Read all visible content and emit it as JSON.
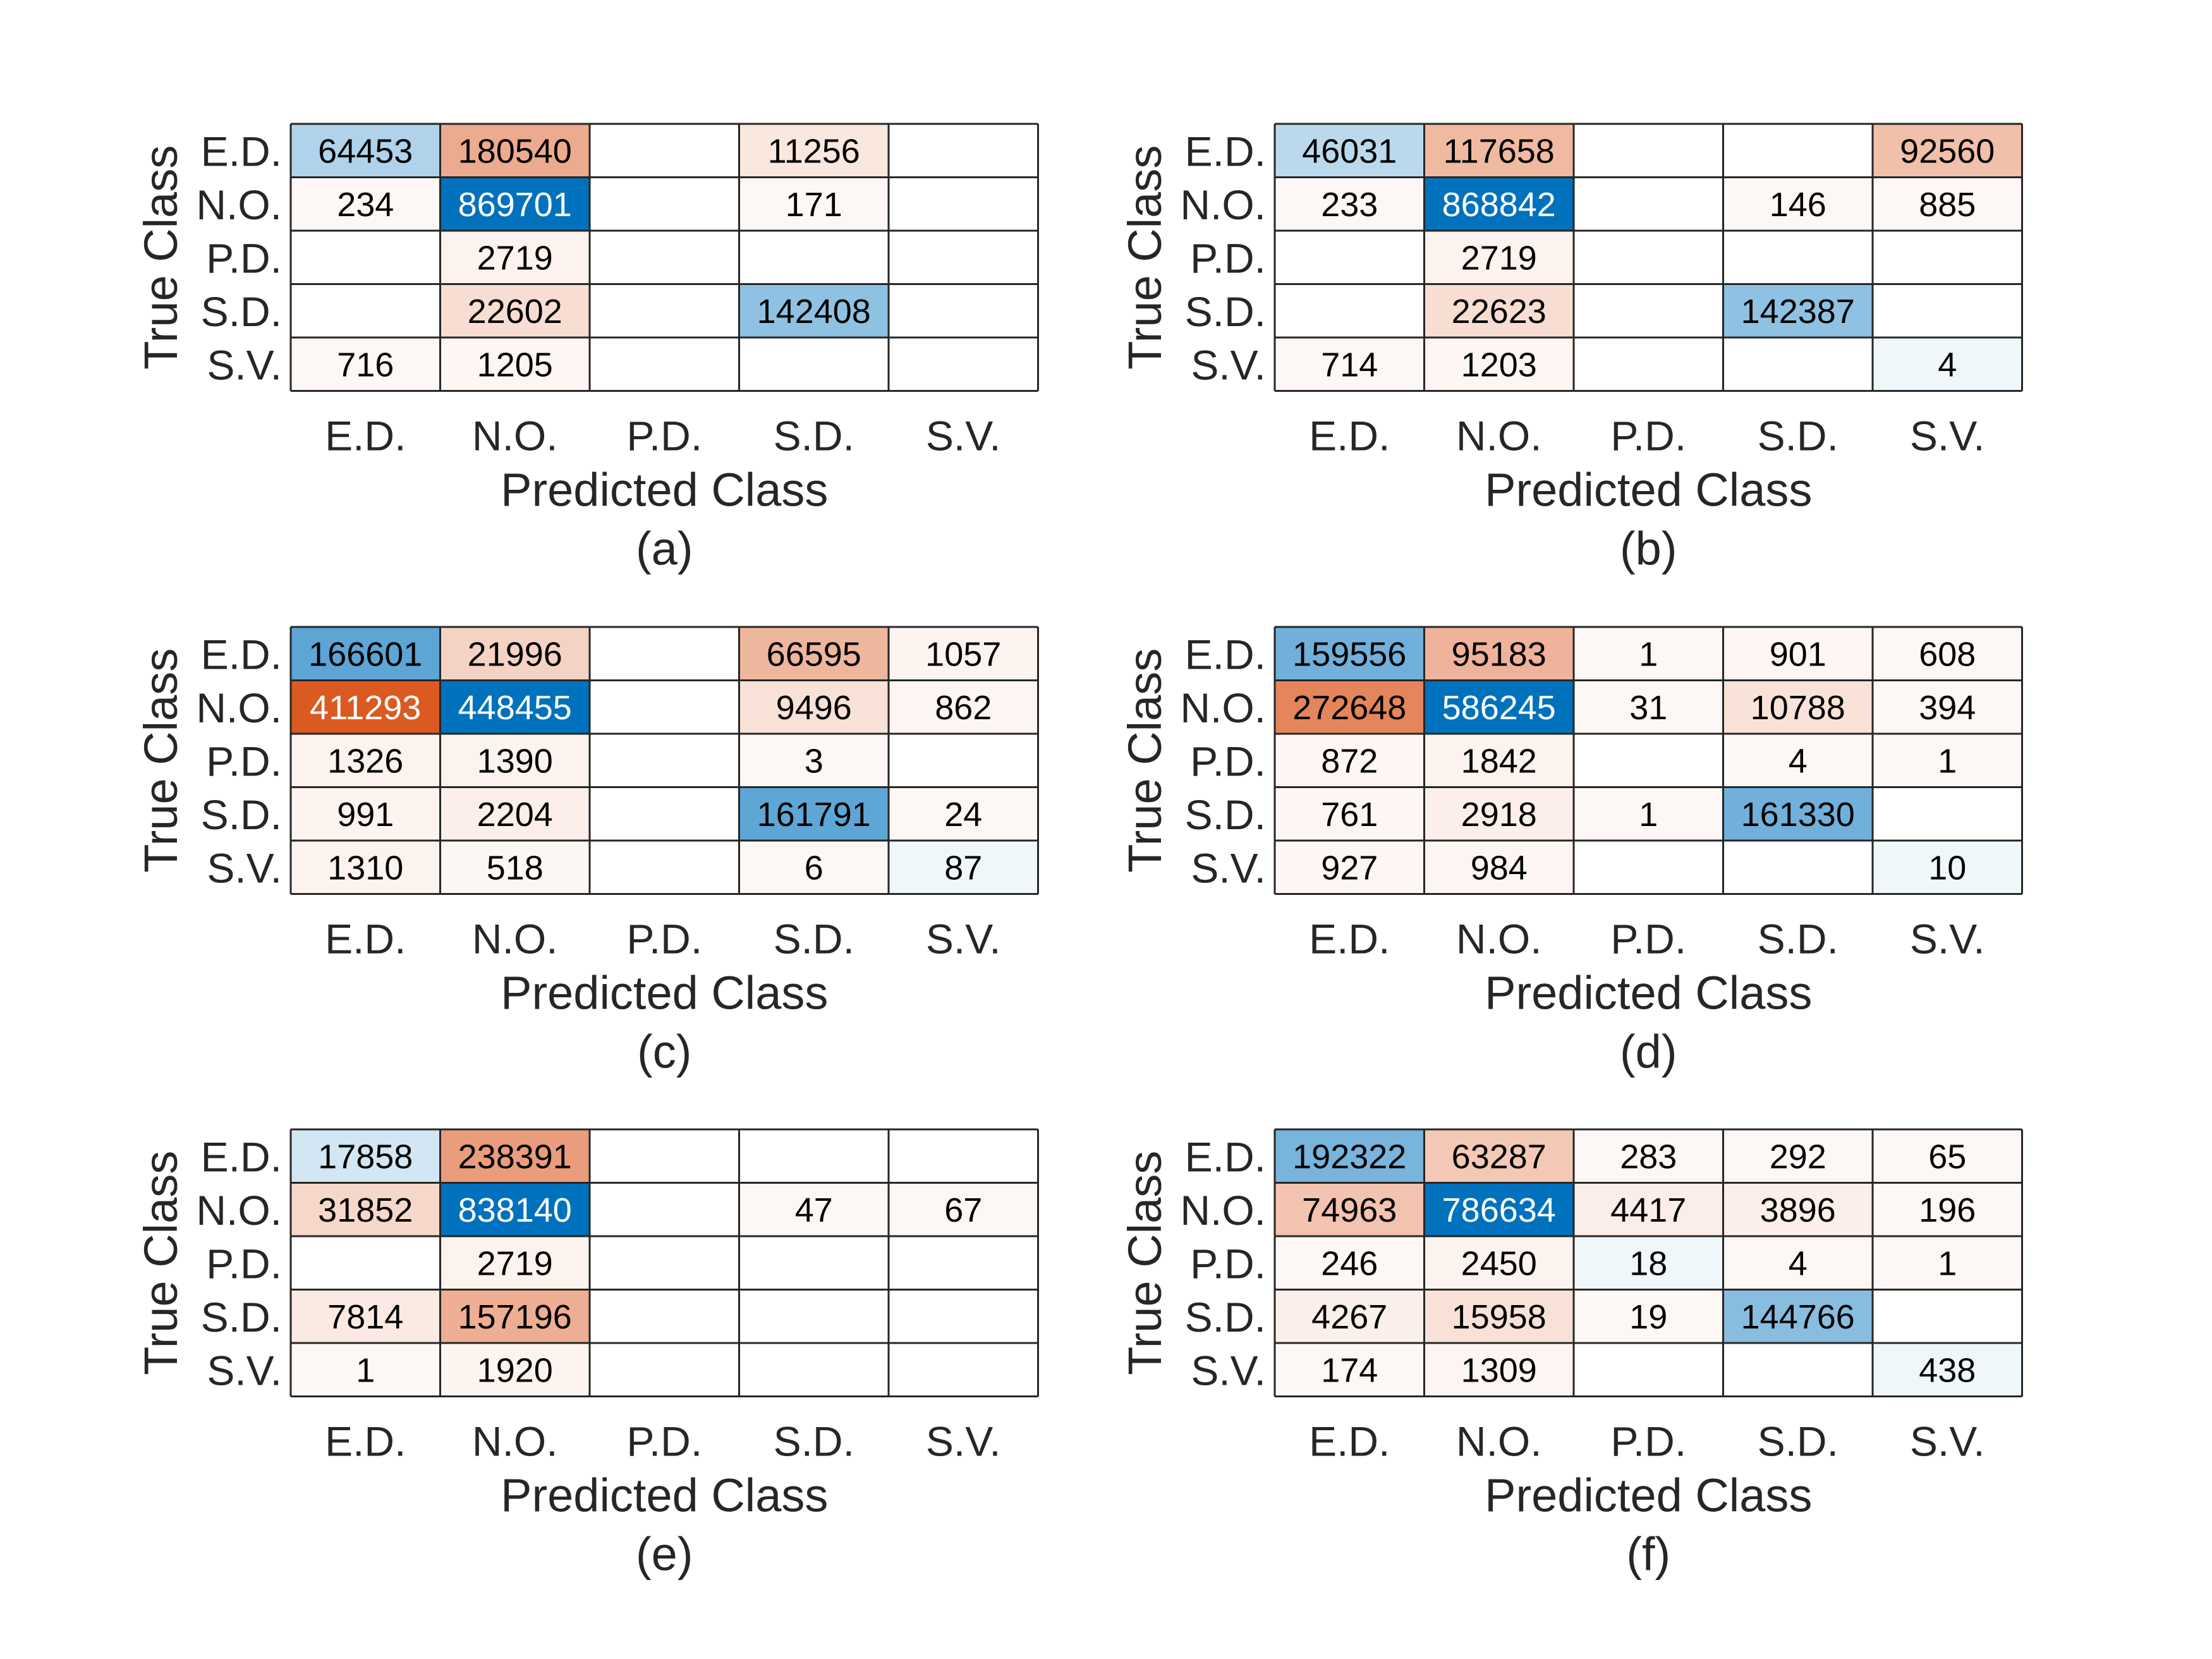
{
  "chart_data": [
    {
      "type": "heatmap",
      "panel_label": "(a)",
      "xlabel": "Predicted Class",
      "ylabel": "True Class",
      "x_categories": [
        "E.D.",
        "N.O.",
        "P.D.",
        "S.D.",
        "S.V."
      ],
      "y_categories": [
        "E.D.",
        "N.O.",
        "P.D.",
        "S.D.",
        "S.V."
      ],
      "values": [
        [
          64453,
          180540,
          null,
          11256,
          null
        ],
        [
          234,
          869701,
          null,
          171,
          null
        ],
        [
          null,
          2719,
          null,
          null,
          null
        ],
        [
          null,
          22602,
          null,
          142408,
          null
        ],
        [
          716,
          1205,
          null,
          null,
          null
        ]
      ]
    },
    {
      "type": "heatmap",
      "panel_label": "(b)",
      "xlabel": "Predicted Class",
      "ylabel": "True Class",
      "x_categories": [
        "E.D.",
        "N.O.",
        "P.D.",
        "S.D.",
        "S.V."
      ],
      "y_categories": [
        "E.D.",
        "N.O.",
        "P.D.",
        "S.D.",
        "S.V."
      ],
      "values": [
        [
          46031,
          117658,
          null,
          null,
          92560
        ],
        [
          233,
          868842,
          null,
          146,
          885
        ],
        [
          null,
          2719,
          null,
          null,
          null
        ],
        [
          null,
          22623,
          null,
          142387,
          null
        ],
        [
          714,
          1203,
          null,
          null,
          4
        ]
      ]
    },
    {
      "type": "heatmap",
      "panel_label": "(c)",
      "xlabel": "Predicted Class",
      "ylabel": "True Class",
      "x_categories": [
        "E.D.",
        "N.O.",
        "P.D.",
        "S.D.",
        "S.V."
      ],
      "y_categories": [
        "E.D.",
        "N.O.",
        "P.D.",
        "S.D.",
        "S.V."
      ],
      "values": [
        [
          166601,
          21996,
          null,
          66595,
          1057
        ],
        [
          411293,
          448455,
          null,
          9496,
          862
        ],
        [
          1326,
          1390,
          null,
          3,
          null
        ],
        [
          991,
          2204,
          null,
          161791,
          24
        ],
        [
          1310,
          518,
          null,
          6,
          87
        ]
      ]
    },
    {
      "type": "heatmap",
      "panel_label": "(d)",
      "xlabel": "Predicted Class",
      "ylabel": "True Class",
      "x_categories": [
        "E.D.",
        "N.O.",
        "P.D.",
        "S.D.",
        "S.V."
      ],
      "y_categories": [
        "E.D.",
        "N.O.",
        "P.D.",
        "S.D.",
        "S.V."
      ],
      "values": [
        [
          159556,
          95183,
          1,
          901,
          608
        ],
        [
          272648,
          586245,
          31,
          10788,
          394
        ],
        [
          872,
          1842,
          null,
          4,
          1
        ],
        [
          761,
          2918,
          1,
          161330,
          null
        ],
        [
          927,
          984,
          null,
          null,
          10
        ]
      ]
    },
    {
      "type": "heatmap",
      "panel_label": "(e)",
      "xlabel": "Predicted Class",
      "ylabel": "True Class",
      "x_categories": [
        "E.D.",
        "N.O.",
        "P.D.",
        "S.D.",
        "S.V."
      ],
      "y_categories": [
        "E.D.",
        "N.O.",
        "P.D.",
        "S.D.",
        "S.V."
      ],
      "values": [
        [
          17858,
          238391,
          null,
          null,
          null
        ],
        [
          31852,
          838140,
          null,
          47,
          67
        ],
        [
          null,
          2719,
          null,
          null,
          null
        ],
        [
          7814,
          157196,
          null,
          null,
          null
        ],
        [
          1,
          1920,
          null,
          null,
          null
        ]
      ]
    },
    {
      "type": "heatmap",
      "panel_label": "(f)",
      "xlabel": "Predicted Class",
      "ylabel": "True Class",
      "x_categories": [
        "E.D.",
        "N.O.",
        "P.D.",
        "S.D.",
        "S.V."
      ],
      "y_categories": [
        "E.D.",
        "N.O.",
        "P.D.",
        "S.D.",
        "S.V."
      ],
      "values": [
        [
          192322,
          63287,
          283,
          292,
          65
        ],
        [
          74963,
          786634,
          4417,
          3896,
          196
        ],
        [
          246,
          2450,
          18,
          4,
          1
        ],
        [
          4267,
          15958,
          19,
          144766,
          null
        ],
        [
          174,
          1309,
          null,
          null,
          438
        ]
      ]
    }
  ],
  "colors": {
    "diagonal": "#0072BD",
    "off_diagonal": "#D95319",
    "grid_line": "#262626",
    "text_dark": "#000000",
    "text_light": "#ffffff"
  }
}
